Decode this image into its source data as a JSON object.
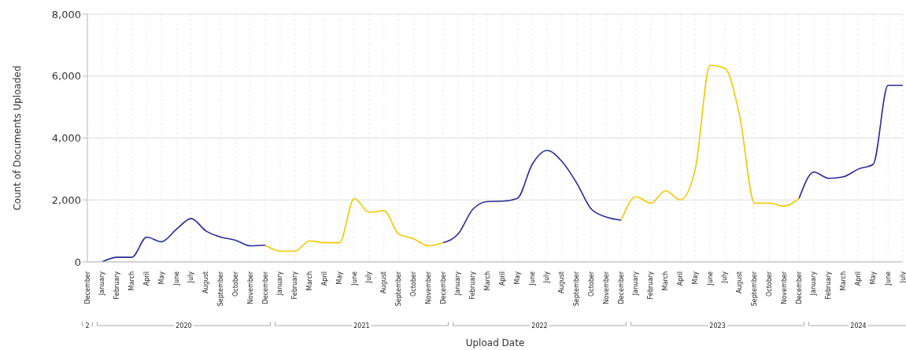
{
  "chart_data": {
    "type": "line",
    "xlabel": "Upload Date",
    "ylabel": "Count of Documents Uploaded",
    "categories": [
      "December",
      "January",
      "February",
      "March",
      "April",
      "May",
      "June",
      "July",
      "August",
      "September",
      "October",
      "November",
      "December",
      "January",
      "February",
      "March",
      "April",
      "May",
      "June",
      "July",
      "August",
      "September",
      "October",
      "November",
      "December",
      "January",
      "February",
      "March",
      "April",
      "May",
      "June",
      "July",
      "August",
      "September",
      "October",
      "November",
      "December",
      "January",
      "February",
      "March",
      "April",
      "May",
      "June",
      "July",
      "August",
      "September",
      "October",
      "November",
      "December",
      "January",
      "February",
      "March",
      "April",
      "May",
      "June",
      "July"
    ],
    "series": [
      {
        "color": "#2a2a9c",
        "values": [
          null,
          0,
          150,
          150,
          800,
          650,
          1050,
          1400,
          1000,
          800,
          700,
          520,
          540,
          null,
          null,
          null,
          null,
          null,
          null,
          null,
          null,
          null,
          null,
          null,
          null,
          null,
          null,
          null,
          null,
          null,
          null,
          null,
          null,
          null,
          null,
          null,
          null,
          null,
          null,
          null,
          null,
          null,
          null,
          null,
          null,
          null,
          null,
          null,
          null,
          null,
          null,
          null,
          null,
          null,
          null,
          null
        ]
      },
      {
        "color": "#f2c800",
        "values": [
          null,
          null,
          null,
          null,
          null,
          null,
          null,
          null,
          null,
          null,
          null,
          null,
          540,
          350,
          350,
          680,
          620,
          620,
          2050,
          1600,
          1650,
          900,
          750,
          520,
          620,
          null,
          null,
          null,
          null,
          null,
          null,
          null,
          null,
          null,
          null,
          null,
          null,
          null,
          null,
          null,
          null,
          null,
          null,
          null,
          null,
          null,
          null,
          null,
          null,
          null,
          null,
          null,
          null,
          null,
          null,
          null
        ]
      },
      {
        "color": "#2a2a9c",
        "values": [
          null,
          null,
          null,
          null,
          null,
          null,
          null,
          null,
          null,
          null,
          null,
          null,
          null,
          null,
          null,
          null,
          null,
          null,
          null,
          null,
          null,
          null,
          null,
          null,
          620,
          900,
          1700,
          1950,
          1960,
          2050,
          3150,
          3600,
          3250,
          2550,
          1700,
          1450,
          1350,
          null,
          null,
          null,
          null,
          null,
          null,
          null,
          null,
          null,
          null,
          null,
          null,
          null,
          null,
          null,
          null,
          null,
          null,
          null
        ]
      },
      {
        "color": "#f2c800",
        "values": [
          null,
          null,
          null,
          null,
          null,
          null,
          null,
          null,
          null,
          null,
          null,
          null,
          null,
          null,
          null,
          null,
          null,
          null,
          null,
          null,
          null,
          null,
          null,
          null,
          null,
          null,
          null,
          null,
          null,
          null,
          null,
          null,
          null,
          null,
          null,
          null,
          1350,
          2100,
          1900,
          2300,
          2000,
          3000,
          6350,
          6250,
          4700,
          1900,
          1900,
          1800,
          2050,
          null,
          null,
          null,
          null,
          null,
          null,
          null
        ]
      },
      {
        "color": "#2a2a9c",
        "values": [
          null,
          null,
          null,
          null,
          null,
          null,
          null,
          null,
          null,
          null,
          null,
          null,
          null,
          null,
          null,
          null,
          null,
          null,
          null,
          null,
          null,
          null,
          null,
          null,
          null,
          null,
          null,
          null,
          null,
          null,
          null,
          null,
          null,
          null,
          null,
          null,
          null,
          null,
          null,
          null,
          null,
          null,
          null,
          null,
          null,
          null,
          null,
          null,
          2050,
          2900,
          2700,
          2750,
          3000,
          3150,
          5700,
          5700
        ]
      }
    ],
    "ylim": [
      0,
      8000
    ],
    "yticks": [
      {
        "value": 0,
        "label": "0"
      },
      {
        "value": 2000,
        "label": "2,000"
      },
      {
        "value": 4000,
        "label": "4,000"
      },
      {
        "value": 6000,
        "label": "6,000"
      },
      {
        "value": 8000,
        "label": "8,000"
      }
    ],
    "grid": true,
    "annotations": [
      "2",
      "2020",
      "2021",
      "2022",
      "2023",
      "2024"
    ]
  }
}
